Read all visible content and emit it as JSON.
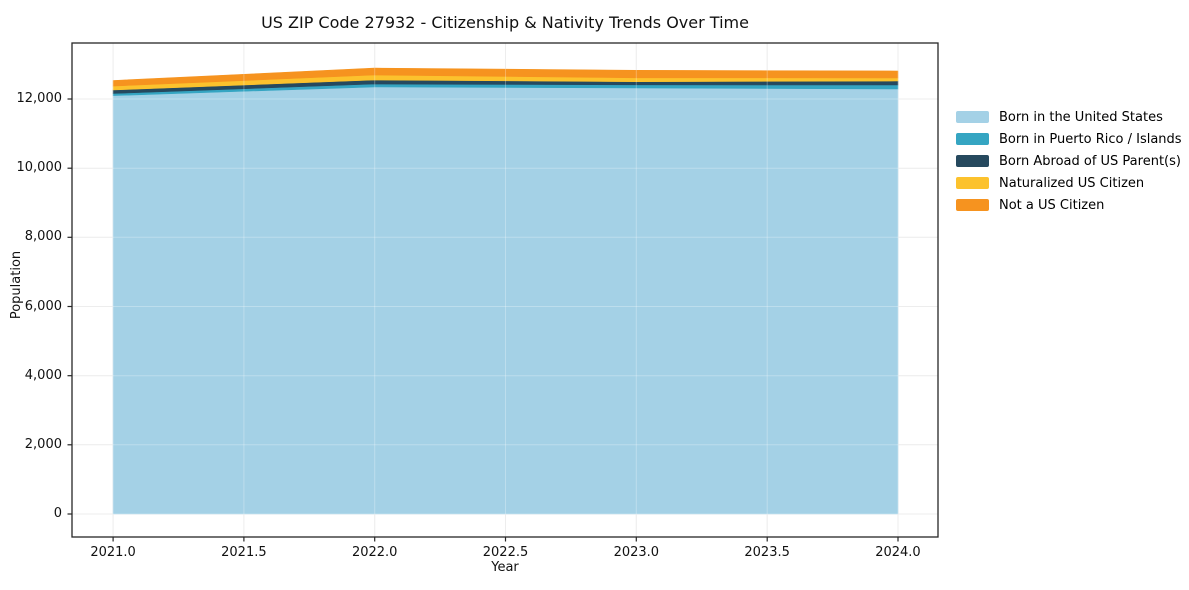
{
  "title": "US ZIP Code 27932 - Citizenship & Nativity Trends Over Time",
  "chart_data": {
    "type": "area",
    "stacked": true,
    "title": "US ZIP Code 27932 - Citizenship & Nativity Trends Over Time",
    "xlabel": "Year",
    "ylabel": "Population",
    "x": [
      2021,
      2022,
      2023,
      2024
    ],
    "series": [
      {
        "name": "Born in the United States",
        "color": "#a4d1e6",
        "values": [
          12100,
          12350,
          12320,
          12290
        ]
      },
      {
        "name": "Born in Puerto Rico / Islands",
        "color": "#35a5c2",
        "values": [
          60,
          85,
          90,
          115
        ]
      },
      {
        "name": "Born Abroad of US Parent(s)",
        "color": "#26495e",
        "values": [
          100,
          115,
          90,
          115
        ]
      },
      {
        "name": "Naturalized US Citizen",
        "color": "#fcc22d",
        "values": [
          115,
          145,
          115,
          90
        ]
      },
      {
        "name": "Not a US Citizen",
        "color": "#f6931f",
        "values": [
          160,
          200,
          215,
          200
        ]
      }
    ],
    "xlim": [
      2020.843,
      2024.153
    ],
    "ylim": [
      -665,
      13620
    ],
    "xticks": [
      2021.0,
      2021.5,
      2022.0,
      2022.5,
      2023.0,
      2023.5,
      2024.0
    ],
    "xtick_labels": [
      "2021.0",
      "2021.5",
      "2022.0",
      "2022.5",
      "2023.0",
      "2023.5",
      "2024.0"
    ],
    "yticks": [
      0,
      2000,
      4000,
      6000,
      8000,
      10000,
      12000
    ],
    "ytick_labels": [
      "0",
      "2,000",
      "4,000",
      "6,000",
      "8,000",
      "10,000",
      "12,000"
    ],
    "grid": true,
    "legend_position": "outside-right",
    "frame_color": "#262626",
    "grid_color": "#e7e7e7"
  }
}
